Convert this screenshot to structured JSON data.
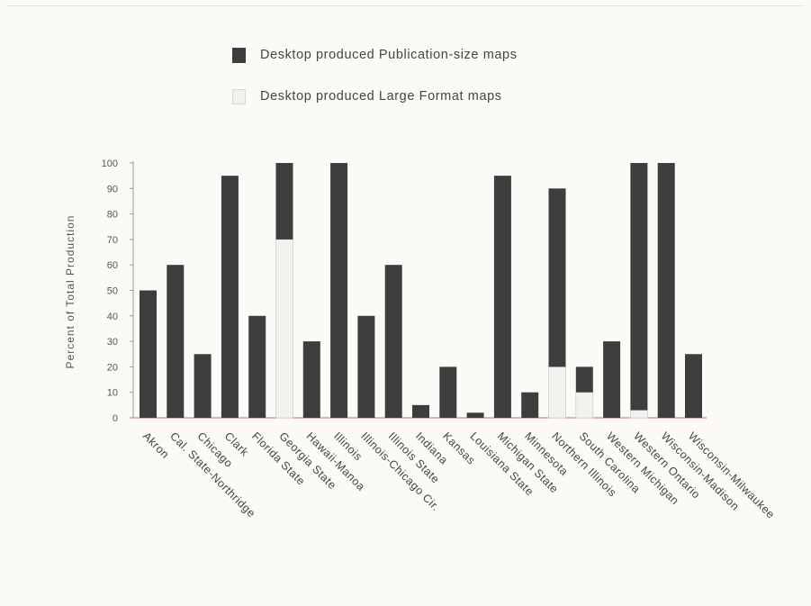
{
  "chart_data": {
    "type": "bar",
    "stacked": true,
    "categories": [
      "Akron",
      "Cal. State-Northridge",
      "Chicago",
      "Clark",
      "Florida State",
      "Georgia State",
      "Hawaii-Manoa",
      "Illinois",
      "Illinois-Chicago Cir.",
      "Illinois State",
      "Indiana",
      "Kansas",
      "Louisiana State",
      "Michigan State",
      "Minnesota",
      "Northern Illinois",
      "South Carolina",
      "Western Michigan",
      "Western Ontario",
      "Wisconsin-Madison",
      "Wisconsin-Milwaukee"
    ],
    "series": [
      {
        "name": "Desktop produced Publication-size maps",
        "color": "#3d3d3d",
        "values": [
          50,
          60,
          25,
          95,
          40,
          30,
          30,
          100,
          40,
          60,
          5,
          20,
          2,
          95,
          10,
          70,
          10,
          30,
          97,
          100,
          25
        ]
      },
      {
        "name": "Desktop produced Large Format maps",
        "color": "#f1f1ee",
        "values": [
          0,
          0,
          0,
          0,
          0,
          70,
          0,
          0,
          0,
          0,
          0,
          0,
          0,
          0,
          0,
          20,
          10,
          0,
          3,
          0,
          0
        ]
      }
    ],
    "stack_order": [
      1,
      0
    ],
    "ylabel": "Percent of Total Production",
    "ylim": [
      0,
      100
    ],
    "yticks": [
      0,
      10,
      20,
      30,
      40,
      50,
      60,
      70,
      80,
      90,
      100
    ],
    "legend_position": "top",
    "grid": false
  }
}
